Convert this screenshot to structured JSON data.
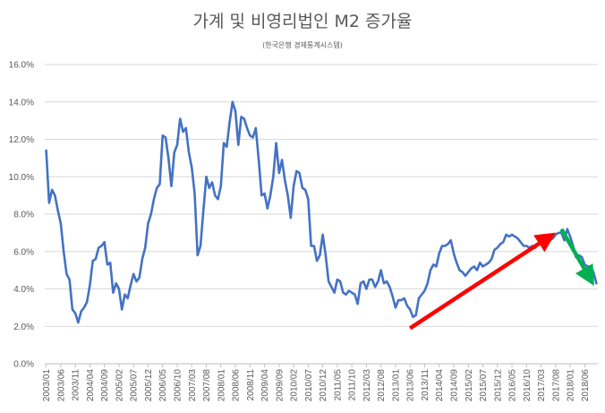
{
  "chart_data": {
    "type": "line",
    "title": "가계 및 비영리법인 M2 증가율",
    "subtitle": "(한국은행 경제통계시스템)",
    "ylim": [
      0,
      16
    ],
    "y_ticks": [
      "0.0%",
      "2.0%",
      "4.0%",
      "6.0%",
      "8.0%",
      "10.0%",
      "12.0%",
      "14.0%",
      "16.0%"
    ],
    "x_ticks": [
      "2003/01",
      "2003/06",
      "2003/11",
      "2004/04",
      "2004/09",
      "2005/02",
      "2005/07",
      "2005/12",
      "2006/05",
      "2006/10",
      "2007/03",
      "2007/08",
      "2008/01",
      "2008/06",
      "2008/11",
      "2009/04",
      "2009/09",
      "2010/02",
      "2010/07",
      "2010/12",
      "2011/05",
      "2011/10",
      "2012/03",
      "2012/08",
      "2013/01",
      "2013/06",
      "2013/11",
      "2014/04",
      "2014/09",
      "2015/02",
      "2015/07",
      "2015/12",
      "2016/05",
      "2016/10",
      "2017/03",
      "2017/08",
      "2018/01",
      "2018/06"
    ],
    "grid": true,
    "series": [
      {
        "color": "#4472c4",
        "values": [
          11.4,
          8.6,
          9.3,
          9.0,
          8.2,
          7.5,
          6.0,
          4.8,
          4.5,
          2.9,
          2.7,
          2.2,
          2.8,
          3.0,
          3.3,
          4.2,
          5.5,
          5.6,
          6.2,
          6.3,
          6.5,
          5.3,
          5.4,
          3.8,
          4.3,
          4.0,
          2.9,
          3.7,
          3.5,
          4.2,
          4.8,
          4.4,
          4.6,
          5.6,
          6.2,
          7.5,
          8.0,
          8.8,
          9.4,
          9.6,
          12.2,
          12.1,
          11.0,
          9.5,
          11.3,
          11.7,
          13.1,
          12.4,
          12.6,
          11.3,
          10.5,
          9.1,
          5.8,
          6.3,
          8.2,
          10.0,
          9.4,
          9.7,
          9.0,
          8.8,
          9.5,
          11.8,
          11.6,
          12.9,
          14.0,
          13.5,
          11.7,
          13.2,
          13.1,
          12.6,
          12.2,
          12.1,
          12.6,
          10.9,
          9.0,
          9.1,
          8.3,
          9.0,
          10.0,
          11.8,
          10.2,
          10.9,
          9.8,
          9.0,
          7.8,
          9.5,
          10.3,
          10.2,
          9.4,
          9.3,
          8.8,
          6.3,
          6.3,
          5.5,
          5.8,
          6.9,
          5.8,
          4.4,
          4.1,
          3.8,
          4.5,
          4.4,
          3.8,
          3.7,
          3.9,
          3.8,
          3.7,
          3.2,
          4.3,
          4.4,
          4.0,
          4.5,
          4.5,
          4.1,
          4.4,
          5.0,
          4.3,
          4.4,
          4.1,
          3.6,
          3.0,
          3.4,
          3.4,
          3.5,
          3.1,
          2.9,
          2.5,
          2.6,
          3.5,
          3.7,
          3.9,
          4.3,
          5.0,
          5.3,
          5.2,
          5.9,
          6.3,
          6.3,
          6.4,
          6.6,
          5.9,
          5.4,
          5.0,
          4.9,
          4.7,
          4.9,
          5.1,
          5.2,
          5.0,
          5.4,
          5.2,
          5.3,
          5.4,
          5.6,
          6.1,
          6.2,
          6.4,
          6.5,
          6.9,
          6.8,
          6.9,
          6.8,
          6.7,
          6.5,
          6.3,
          6.3,
          6.2,
          6.3,
          6.2,
          6.4,
          6.7,
          6.3,
          6.5,
          6.6,
          6.7,
          6.9,
          7.0,
          7.0,
          6.6,
          7.2,
          6.8,
          6.3,
          5.7,
          5.8,
          5.7,
          5.3,
          5.2,
          5.2,
          4.9,
          4.3
        ]
      }
    ],
    "annotations": [
      {
        "type": "arrow",
        "color": "#ff0000",
        "from": [
          "2013/06",
          1.9
        ],
        "to": [
          "2017/06",
          6.8
        ]
      },
      {
        "type": "arrow",
        "color": "#00b050",
        "from": [
          "2017/10",
          7.2
        ],
        "to": [
          "2018/08",
          4.5
        ]
      }
    ]
  }
}
